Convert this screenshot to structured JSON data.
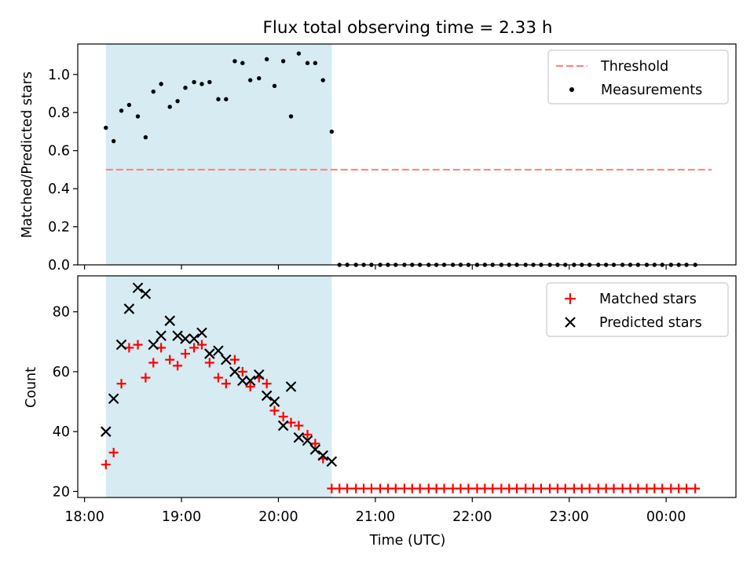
{
  "chart_data": [
    {
      "type": "scatter",
      "title": "Flux total observing time = 2.33 h",
      "ylabel": "Matched/Predicted stars",
      "xlabel": "",
      "ylim": [
        0,
        1.16
      ],
      "x_range_hours": [
        17.93,
        24.72
      ],
      "yticks": [
        0.0,
        0.2,
        0.4,
        0.6,
        0.8,
        1.0
      ],
      "ytick_labels": [
        "0.0",
        "0.2",
        "0.4",
        "0.6",
        "0.8",
        "1.0"
      ],
      "observing_window_hours": [
        18.22,
        20.55
      ],
      "threshold": {
        "name": "Threshold",
        "value": 0.5,
        "x_range_hours": [
          18.22,
          24.47
        ],
        "color": "#ff7f7f",
        "style": "dashed"
      },
      "legend": [
        "Threshold",
        "Measurements"
      ],
      "legend_position": "upper right",
      "series": [
        {
          "name": "Measurements",
          "color": "#000000",
          "marker": "dot",
          "x_hours": [
            18.22,
            18.3,
            18.38,
            18.46,
            18.55,
            18.63,
            18.71,
            18.79,
            18.88,
            18.96,
            19.04,
            19.13,
            19.21,
            19.29,
            19.38,
            19.46,
            19.55,
            19.63,
            19.71,
            19.8,
            19.88,
            19.96,
            20.05,
            20.13,
            20.21,
            20.3,
            20.38,
            20.46,
            20.55,
            20.63,
            20.71,
            20.8,
            20.88,
            20.96,
            21.05,
            21.13,
            21.21,
            21.3,
            21.38,
            21.46,
            21.55,
            21.63,
            21.71,
            21.8,
            21.88,
            21.96,
            22.05,
            22.13,
            22.21,
            22.3,
            22.38,
            22.46,
            22.55,
            22.63,
            22.71,
            22.8,
            22.88,
            22.96,
            23.05,
            23.13,
            23.21,
            23.3,
            23.38,
            23.46,
            23.55,
            23.63,
            23.71,
            23.8,
            23.88,
            23.96,
            24.05,
            24.13,
            24.21,
            24.3
          ],
          "y": [
            0.72,
            0.65,
            0.81,
            0.84,
            0.78,
            0.67,
            0.91,
            0.95,
            0.83,
            0.86,
            0.93,
            0.96,
            0.95,
            0.96,
            0.87,
            0.87,
            1.07,
            1.06,
            0.97,
            0.98,
            1.08,
            0.94,
            1.07,
            0.78,
            1.11,
            1.06,
            1.06,
            0.97,
            0.7,
            0,
            0,
            0,
            0,
            0,
            0,
            0,
            0,
            0,
            0,
            0,
            0,
            0,
            0,
            0,
            0,
            0,
            0,
            0,
            0,
            0,
            0,
            0,
            0,
            0,
            0,
            0,
            0,
            0,
            0,
            0,
            0,
            0,
            0,
            0,
            0,
            0,
            0,
            0,
            0,
            0,
            0,
            0,
            0,
            0
          ]
        }
      ]
    },
    {
      "type": "scatter",
      "title": "",
      "ylabel": "Count",
      "xlabel": "Time (UTC)",
      "ylim": [
        18,
        92
      ],
      "x_range_hours": [
        17.93,
        24.72
      ],
      "yticks": [
        20,
        40,
        60,
        80
      ],
      "ytick_labels": [
        "20",
        "40",
        "60",
        "80"
      ],
      "xticks_hours": [
        18,
        19,
        20,
        21,
        22,
        23,
        24
      ],
      "xtick_labels": [
        "18:00",
        "19:00",
        "20:00",
        "21:00",
        "22:00",
        "23:00",
        "00:00"
      ],
      "observing_window_hours": [
        18.22,
        20.55
      ],
      "legend": [
        "Matched stars",
        "Predicted stars"
      ],
      "legend_position": "upper right",
      "series": [
        {
          "name": "Matched stars",
          "color": "#ff0000",
          "marker": "plus",
          "x_hours": [
            18.22,
            18.3,
            18.38,
            18.46,
            18.55,
            18.63,
            18.71,
            18.79,
            18.88,
            18.96,
            19.04,
            19.13,
            19.21,
            19.29,
            19.38,
            19.46,
            19.55,
            19.63,
            19.71,
            19.8,
            19.88,
            19.96,
            20.05,
            20.13,
            20.21,
            20.3,
            20.38,
            20.46,
            20.55,
            20.63,
            20.71,
            20.8,
            20.88,
            20.96,
            21.05,
            21.13,
            21.21,
            21.3,
            21.38,
            21.46,
            21.55,
            21.63,
            21.71,
            21.8,
            21.88,
            21.96,
            22.05,
            22.13,
            22.21,
            22.3,
            22.38,
            22.46,
            22.55,
            22.63,
            22.71,
            22.8,
            22.88,
            22.96,
            23.05,
            23.13,
            23.21,
            23.3,
            23.38,
            23.46,
            23.55,
            23.63,
            23.71,
            23.8,
            23.88,
            23.96,
            24.05,
            24.13,
            24.21,
            24.3
          ],
          "y": [
            29,
            33,
            56,
            68,
            69,
            58,
            63,
            68,
            64,
            62,
            66,
            68,
            69,
            63,
            58,
            56,
            64,
            60,
            55,
            58,
            56,
            47,
            45,
            43,
            42,
            39,
            36,
            31,
            21,
            21,
            21,
            21,
            21,
            21,
            21,
            21,
            21,
            21,
            21,
            21,
            21,
            21,
            21,
            21,
            21,
            21,
            21,
            21,
            21,
            21,
            21,
            21,
            21,
            21,
            21,
            21,
            21,
            21,
            21,
            21,
            21,
            21,
            21,
            21,
            21,
            21,
            21,
            21,
            21,
            21,
            21,
            21,
            21,
            21
          ]
        },
        {
          "name": "Predicted stars",
          "color": "#000000",
          "marker": "x",
          "x_hours": [
            18.22,
            18.3,
            18.38,
            18.46,
            18.55,
            18.63,
            18.71,
            18.79,
            18.88,
            18.96,
            19.04,
            19.13,
            19.21,
            19.29,
            19.38,
            19.46,
            19.55,
            19.63,
            19.71,
            19.8,
            19.88,
            19.96,
            20.05,
            20.13,
            20.21,
            20.3,
            20.38,
            20.46,
            20.55
          ],
          "y": [
            40,
            51,
            69,
            81,
            88,
            86,
            69,
            72,
            77,
            72,
            71,
            71,
            73,
            66,
            67,
            64,
            60,
            57,
            57,
            59,
            52,
            50,
            42,
            55,
            38,
            37,
            34,
            32,
            30
          ]
        }
      ]
    }
  ]
}
